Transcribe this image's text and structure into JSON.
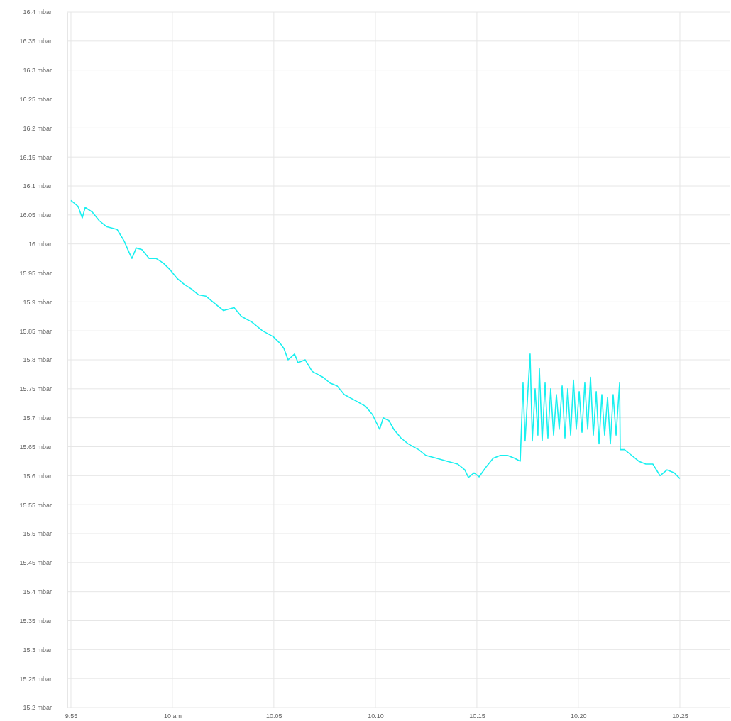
{
  "chart_data": {
    "type": "line",
    "xlim": [
      9.9138,
      10.4575
    ],
    "ylim": [
      15.2,
      16.4
    ],
    "xticks": [
      {
        "value": 9.9167,
        "label": "9:55"
      },
      {
        "value": 10,
        "label": "10 am"
      },
      {
        "value": 10.0833,
        "label": "10:05"
      },
      {
        "value": 10.1667,
        "label": "10:10"
      },
      {
        "value": 10.25,
        "label": "10:15"
      },
      {
        "value": 10.3333,
        "label": "10:20"
      },
      {
        "value": 10.4167,
        "label": "10:25"
      }
    ],
    "yticks": [
      {
        "value": 15.2,
        "label": "15.2 mbar"
      },
      {
        "value": 15.25,
        "label": "15.25 mbar"
      },
      {
        "value": 15.3,
        "label": "15.3 mbar"
      },
      {
        "value": 15.35,
        "label": "15.35 mbar"
      },
      {
        "value": 15.4,
        "label": "15.4 mbar"
      },
      {
        "value": 15.45,
        "label": "15.45 mbar"
      },
      {
        "value": 15.5,
        "label": "15.5 mbar"
      },
      {
        "value": 15.55,
        "label": "15.55 mbar"
      },
      {
        "value": 15.6,
        "label": "15.6 mbar"
      },
      {
        "value": 15.65,
        "label": "15.65 mbar"
      },
      {
        "value": 15.7,
        "label": "15.7 mbar"
      },
      {
        "value": 15.75,
        "label": "15.75 mbar"
      },
      {
        "value": 15.8,
        "label": "15.8 mbar"
      },
      {
        "value": 15.85,
        "label": "15.85 mbar"
      },
      {
        "value": 15.9,
        "label": "15.9 mbar"
      },
      {
        "value": 15.95,
        "label": "15.95 mbar"
      },
      {
        "value": 16,
        "label": "16 mbar"
      },
      {
        "value": 16.05,
        "label": "16.05 mbar"
      },
      {
        "value": 16.1,
        "label": "16.1 mbar"
      },
      {
        "value": 16.15,
        "label": "16.15 mbar"
      },
      {
        "value": 16.2,
        "label": "16.2 mbar"
      },
      {
        "value": 16.25,
        "label": "16.25 mbar"
      },
      {
        "value": 16.3,
        "label": "16.3 mbar"
      },
      {
        "value": 16.35,
        "label": "16.35 mbar"
      },
      {
        "value": 16.4,
        "label": "16.4 mbar"
      }
    ],
    "grid": true,
    "marker": "none",
    "line_style": "solid",
    "series": [
      {
        "color": "#19f0f0",
        "x": [
          9.9167,
          9.9196,
          9.9225,
          9.926,
          9.9284,
          9.9342,
          9.94,
          9.9458,
          9.9546,
          9.9604,
          9.9645,
          9.9668,
          9.9703,
          9.975,
          9.9808,
          9.9866,
          9.9925,
          9.9983,
          10.0041,
          10.0099,
          10.0158,
          10.0216,
          10.0274,
          10.0332,
          10.042,
          10.0507,
          10.0566,
          10.0653,
          10.074,
          10.0828,
          10.0886,
          10.0915,
          10.095,
          10.1003,
          10.1032,
          10.109,
          10.1148,
          10.1236,
          10.1294,
          10.1352,
          10.1411,
          10.1498,
          10.1585,
          10.1644,
          10.1702,
          10.1731,
          10.1778,
          10.1818,
          10.1877,
          10.1935,
          10.2022,
          10.2081,
          10.2168,
          10.2255,
          10.2343,
          10.2401,
          10.243,
          10.2477,
          10.2518,
          10.2576,
          10.2634,
          10.2693,
          10.2751,
          10.2809,
          10.2856,
          10.2879,
          10.2896,
          10.292,
          10.2937,
          10.2955,
          10.2978,
          10.3001,
          10.3013,
          10.3036,
          10.306,
          10.3083,
          10.3106,
          10.313,
          10.3153,
          10.3176,
          10.32,
          10.3223,
          10.3246,
          10.327,
          10.3293,
          10.3316,
          10.334,
          10.3363,
          10.3386,
          10.341,
          10.3433,
          10.3456,
          10.348,
          10.3503,
          10.3526,
          10.3549,
          10.3573,
          10.3596,
          10.3619,
          10.3643,
          10.3672,
          10.3677,
          10.3712,
          10.3771,
          10.3829,
          10.3887,
          10.3945,
          10.4004,
          10.4062,
          10.412,
          10.4167
        ],
        "values": [
          16.075,
          16.07,
          16.065,
          16.045,
          16.063,
          16.055,
          16.04,
          16.03,
          16.025,
          16.005,
          15.985,
          15.975,
          15.993,
          15.99,
          15.975,
          15.975,
          15.967,
          15.955,
          15.94,
          15.93,
          15.922,
          15.912,
          15.91,
          15.9,
          15.885,
          15.89,
          15.875,
          15.865,
          15.85,
          15.84,
          15.828,
          15.82,
          15.8,
          15.81,
          15.795,
          15.8,
          15.78,
          15.77,
          15.76,
          15.755,
          15.74,
          15.73,
          15.72,
          15.705,
          15.68,
          15.7,
          15.695,
          15.68,
          15.665,
          15.655,
          15.645,
          15.635,
          15.63,
          15.625,
          15.62,
          15.61,
          15.597,
          15.605,
          15.598,
          15.615,
          15.63,
          15.635,
          15.635,
          15.63,
          15.625,
          15.76,
          15.66,
          15.75,
          15.81,
          15.66,
          15.75,
          15.67,
          15.785,
          15.66,
          15.76,
          15.665,
          15.75,
          15.67,
          15.74,
          15.68,
          15.755,
          15.665,
          15.75,
          15.67,
          15.765,
          15.68,
          15.745,
          15.675,
          15.76,
          15.68,
          15.77,
          15.67,
          15.745,
          15.655,
          15.74,
          15.67,
          15.735,
          15.655,
          15.74,
          15.67,
          15.76,
          15.645,
          15.645,
          15.635,
          15.625,
          15.62,
          15.62,
          15.6,
          15.61,
          15.605,
          15.595
        ]
      }
    ]
  }
}
